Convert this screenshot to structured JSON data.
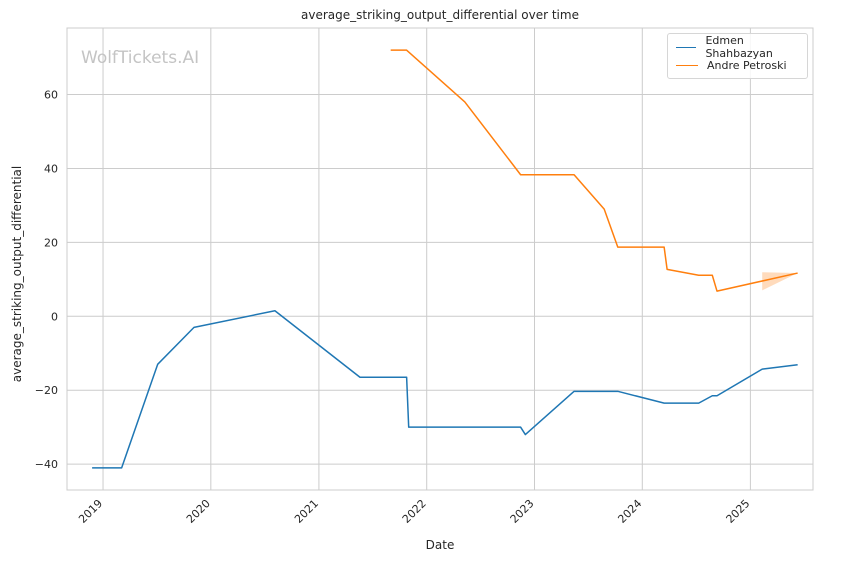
{
  "chart_data": {
    "type": "line",
    "title": "average_striking_output_differential over time",
    "xlabel": "Date",
    "ylabel": "average_striking_output_differential",
    "watermark": "WolfTickets.AI",
    "xlim": [
      "2018-09-01",
      "2025-08-01"
    ],
    "ylim": [
      -47,
      78
    ],
    "xticks": [
      {
        "date": "2019-01-01",
        "label": "2019"
      },
      {
        "date": "2020-01-01",
        "label": "2020"
      },
      {
        "date": "2021-01-01",
        "label": "2021"
      },
      {
        "date": "2022-01-01",
        "label": "2022"
      },
      {
        "date": "2023-01-01",
        "label": "2023"
      },
      {
        "date": "2024-01-01",
        "label": "2024"
      },
      {
        "date": "2025-01-01",
        "label": "2025"
      }
    ],
    "yticks": [
      {
        "value": -40,
        "label": "−40"
      },
      {
        "value": -20,
        "label": "−20"
      },
      {
        "value": 0,
        "label": "0"
      },
      {
        "value": 20,
        "label": "20"
      },
      {
        "value": 40,
        "label": "40"
      },
      {
        "value": 60,
        "label": "60"
      }
    ],
    "grid": true,
    "legend_position": "top-right",
    "series": [
      {
        "name": "Edmen Shahbazyan",
        "color": "#1f77b4",
        "points": [
          {
            "x": "2018-11-25",
            "y": -41
          },
          {
            "x": "2019-03-05",
            "y": -41
          },
          {
            "x": "2019-07-05",
            "y": -13
          },
          {
            "x": "2019-11-05",
            "y": -3
          },
          {
            "x": "2020-08-05",
            "y": 1.5
          },
          {
            "x": "2021-05-20",
            "y": -16.5
          },
          {
            "x": "2021-10-25",
            "y": -16.5
          },
          {
            "x": "2021-11-01",
            "y": -30
          },
          {
            "x": "2022-11-15",
            "y": -30
          },
          {
            "x": "2022-12-01",
            "y": -32
          },
          {
            "x": "2023-05-15",
            "y": -20.3
          },
          {
            "x": "2023-10-10",
            "y": -20.3
          },
          {
            "x": "2024-03-15",
            "y": -23.5
          },
          {
            "x": "2024-07-10",
            "y": -23.5
          },
          {
            "x": "2024-08-25",
            "y": -21.5
          },
          {
            "x": "2024-09-10",
            "y": -21.5
          },
          {
            "x": "2025-02-10",
            "y": -14.3
          },
          {
            "x": "2025-06-10",
            "y": -13.1
          }
        ]
      },
      {
        "name": "Andre Petroski",
        "color": "#ff7f0e",
        "points": [
          {
            "x": "2021-09-01",
            "y": 72
          },
          {
            "x": "2021-10-25",
            "y": 72
          },
          {
            "x": "2022-05-10",
            "y": 58
          },
          {
            "x": "2022-11-15",
            "y": 38.3
          },
          {
            "x": "2023-05-15",
            "y": 38.3
          },
          {
            "x": "2023-08-25",
            "y": 29
          },
          {
            "x": "2023-10-10",
            "y": 18.7
          },
          {
            "x": "2024-03-15",
            "y": 18.7
          },
          {
            "x": "2024-03-25",
            "y": 12.7
          },
          {
            "x": "2024-07-10",
            "y": 11.1
          },
          {
            "x": "2024-08-25",
            "y": 11.1
          },
          {
            "x": "2024-09-10",
            "y": 6.8
          },
          {
            "x": "2025-06-10",
            "y": 11.7
          }
        ],
        "band": [
          {
            "x": "2025-02-10",
            "low": 7,
            "high": 11.9
          },
          {
            "x": "2025-06-10",
            "low": 11.7,
            "high": 11.7
          }
        ]
      }
    ]
  }
}
